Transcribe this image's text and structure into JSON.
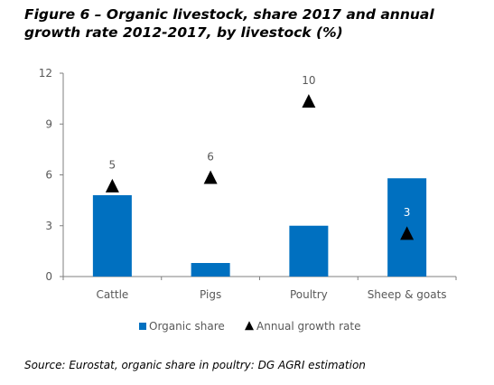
{
  "title": "Figure 6 – Organic livestock, share 2017 and annual growth rate 2012-2017, by livestock (%)",
  "source": "Source: Eurostat, organic share in poultry: DG AGRI estimation",
  "colors": {
    "bar": "#0070c0",
    "marker": "#000000",
    "axis": "#7f7f7f",
    "tick_text": "#595959"
  },
  "chart_data": {
    "type": "bar",
    "categories": [
      "Cattle",
      "Pigs",
      "Poultry",
      "Sheep & goats"
    ],
    "series": [
      {
        "name": "Organic share",
        "kind": "bar",
        "values": [
          4.8,
          0.8,
          3.0,
          5.8
        ]
      },
      {
        "name": "Annual growth rate",
        "kind": "marker",
        "marker": "triangle",
        "values": [
          5.3,
          5.8,
          10.3,
          2.5
        ],
        "labels": [
          "5",
          "6",
          "10",
          "3"
        ]
      }
    ],
    "yticks": [
      "0",
      "3",
      "6",
      "9",
      "12"
    ],
    "ylim": [
      0,
      12
    ],
    "grid": false,
    "legend": "bottom"
  }
}
